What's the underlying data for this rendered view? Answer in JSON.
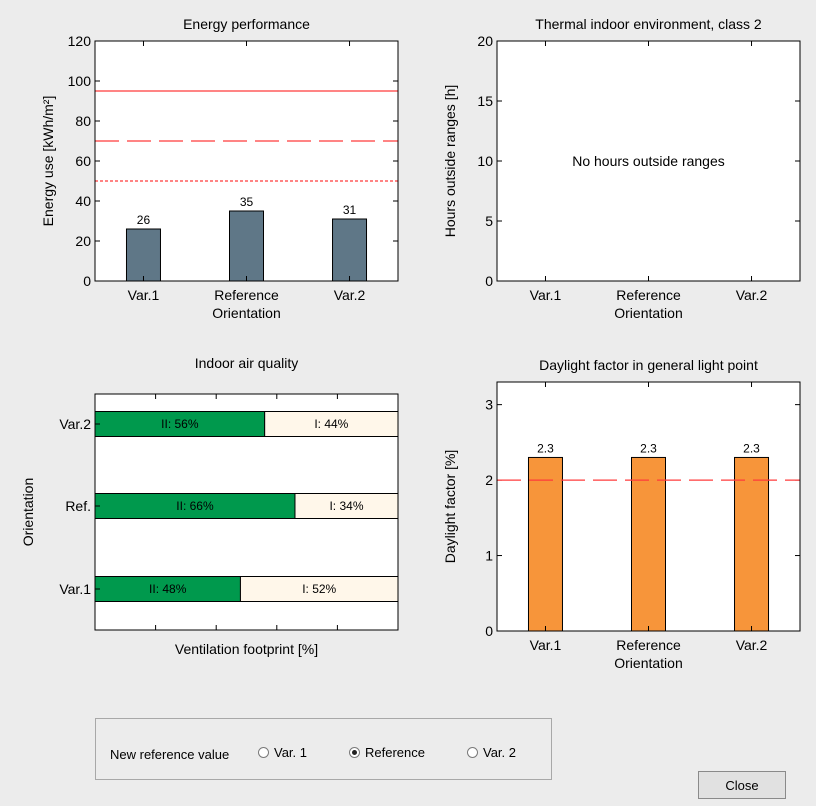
{
  "chart_data": [
    {
      "type": "bar",
      "title": "Energy performance",
      "ylabel": "Energy use [kWh/m²]",
      "xlabel": "Orientation",
      "categories": [
        "Var.1",
        "Reference",
        "Var.2"
      ],
      "values": [
        26,
        35,
        31
      ],
      "data_labels": [
        "26",
        "35",
        "31"
      ],
      "ylim": [
        0,
        120
      ],
      "yticks": [
        0,
        20,
        40,
        60,
        80,
        100,
        120
      ],
      "reference_lines": [
        {
          "value": 95,
          "style": "solid",
          "color": "#ff3b3b"
        },
        {
          "value": 70,
          "style": "long-dash",
          "color": "#ff3b3b"
        },
        {
          "value": 50,
          "style": "dotted",
          "color": "#ff3b3b"
        }
      ],
      "bar_color": "#5f7787"
    },
    {
      "type": "bar",
      "title": "Thermal indoor environment, class 2",
      "ylabel": "Hours outside ranges [h]",
      "xlabel": "Orientation",
      "categories": [
        "Var.1",
        "Reference",
        "Var.2"
      ],
      "values": [
        0,
        0,
        0
      ],
      "ylim": [
        0,
        20
      ],
      "yticks": [
        0,
        5,
        10,
        15,
        20
      ],
      "annotation": "No hours outside ranges"
    },
    {
      "type": "bar",
      "orientation": "horizontal",
      "stacked": true,
      "title": "Indoor air quality",
      "xlabel": "Ventilation footprint [%]",
      "ylabel": "Orientation",
      "categories": [
        "Var.2",
        "Ref.",
        "Var.1"
      ],
      "series": [
        {
          "values": [
            56,
            66,
            48
          ],
          "labels": [
            "II: 56%",
            "II: 66%",
            "II: 48%"
          ],
          "color": "#00994d"
        },
        {
          "values": [
            44,
            34,
            52
          ],
          "labels": [
            "I: 44%",
            "I: 34%",
            "I: 52%"
          ],
          "color": "#fff7ea"
        }
      ],
      "xlim": [
        0,
        100
      ]
    },
    {
      "type": "bar",
      "title": "Daylight factor in general light point",
      "ylabel": "Daylight factor [%]",
      "xlabel": "Orientation",
      "categories": [
        "Var.1",
        "Reference",
        "Var.2"
      ],
      "values": [
        2.3,
        2.3,
        2.3
      ],
      "data_labels": [
        "2.3",
        "2.3",
        "2.3"
      ],
      "ylim": [
        0,
        3.3
      ],
      "yticks": [
        0,
        1,
        2,
        3
      ],
      "reference_lines": [
        {
          "value": 2,
          "style": "long-dash",
          "color": "#ff3b3b"
        }
      ],
      "bar_color": "#f7953a"
    }
  ],
  "controls": {
    "reference_label": "New reference value",
    "options": [
      {
        "label": "Var. 1",
        "selected": false
      },
      {
        "label": "Reference",
        "selected": true
      },
      {
        "label": "Var. 2",
        "selected": false
      }
    ],
    "close_label": "Close"
  }
}
